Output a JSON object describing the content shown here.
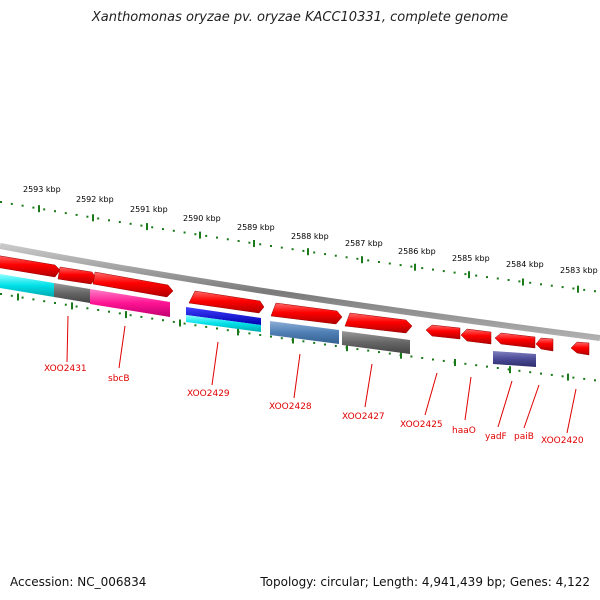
{
  "title": "Xanthomonas oryzae pv. oryzae KACC10331, complete genome",
  "accession": "Accession: NC_006834",
  "summary": "Topology: circular; Length: 4,941,439 bp; Genes: 4,122",
  "ruler_labels": [
    "2593 kbp",
    "2592 kbp",
    "2591 kbp",
    "2590 kbp",
    "2589 kbp",
    "2588 kbp",
    "2587 kbp",
    "2586 kbp",
    "2585 kbp",
    "2584 kbp",
    "2583 kbp"
  ],
  "gene_labels": [
    "XOO2431",
    "sbcB",
    "XOO2429",
    "XOO2428",
    "XOO2427",
    "XOO2425",
    "haaO",
    "yadF",
    "paiB",
    "XOO2420"
  ],
  "colors": {
    "gene": "#ff0000",
    "backbone": "#8c8c8c",
    "ruler": "#1a7a1a",
    "label": "#e00000"
  }
}
